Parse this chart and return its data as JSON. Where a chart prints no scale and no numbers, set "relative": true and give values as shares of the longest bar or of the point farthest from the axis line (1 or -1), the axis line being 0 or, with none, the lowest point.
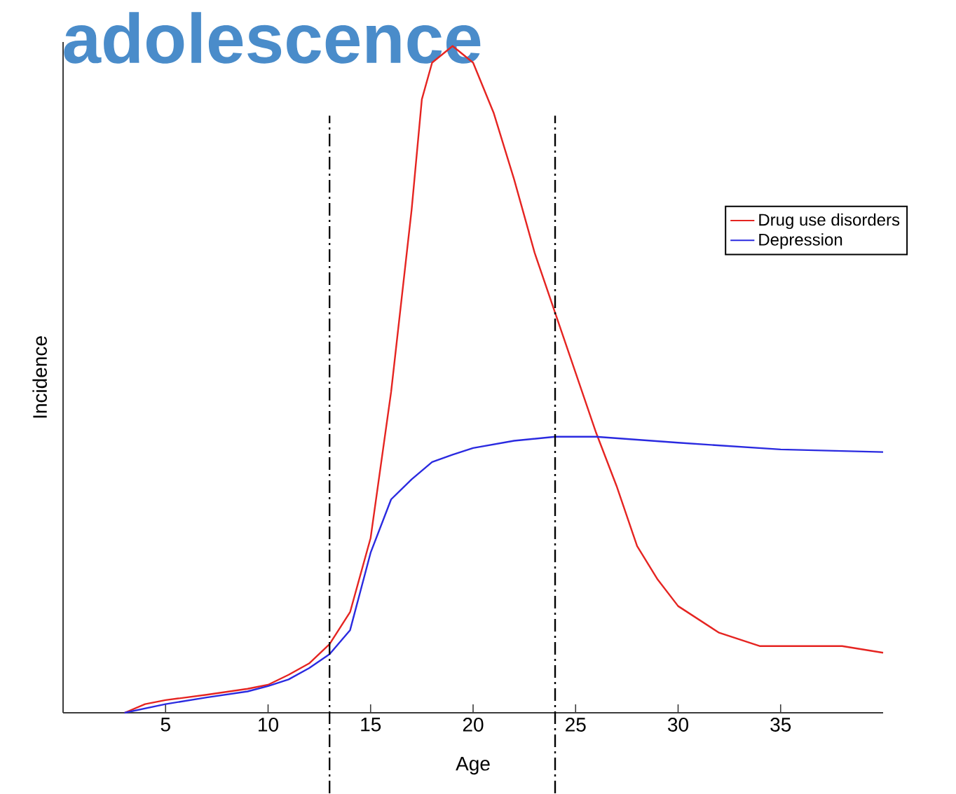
{
  "chart_data": {
    "type": "line",
    "title": "adolescence",
    "xlabel": "Age",
    "ylabel": "Incidence",
    "relative": true,
    "xlim": [
      0,
      40
    ],
    "xticks": [
      5,
      10,
      15,
      20,
      25,
      30,
      35
    ],
    "legend": "top right",
    "line_style": "solid",
    "series": [
      {
        "name": "Drug use disorders",
        "color": "#e52421",
        "x": [
          3,
          4,
          5,
          7,
          9,
          10,
          11,
          12,
          13,
          14,
          15,
          16,
          17,
          17.5,
          18,
          19,
          20,
          21,
          22,
          23,
          24,
          25,
          26,
          27,
          28,
          29,
          30,
          32,
          34,
          36,
          38,
          40
        ],
        "values": [
          0,
          0.013,
          0.019,
          0.027,
          0.036,
          0.042,
          0.057,
          0.074,
          0.103,
          0.151,
          0.262,
          0.481,
          0.754,
          0.92,
          0.975,
          1,
          0.975,
          0.9,
          0.8,
          0.69,
          0.6,
          0.51,
          0.42,
          0.34,
          0.25,
          0.2,
          0.16,
          0.12,
          0.1,
          0.1,
          0.1,
          0.09
        ]
      },
      {
        "name": "Depression",
        "color": "#2a2ae0",
        "x": [
          3,
          5,
          7,
          9,
          10,
          11,
          12,
          13,
          14,
          15,
          16,
          17,
          18,
          19,
          20,
          22,
          24,
          26,
          30,
          35,
          40
        ],
        "values": [
          0,
          0.013,
          0.023,
          0.032,
          0.04,
          0.05,
          0.067,
          0.088,
          0.124,
          0.24,
          0.32,
          0.35,
          0.376,
          0.387,
          0.397,
          0.408,
          0.414,
          0.414,
          0.405,
          0.395,
          0.391
        ]
      }
    ],
    "ref_lines": [
      {
        "axis": "x",
        "value": 13,
        "color": "#000000",
        "line_style": "dashdot"
      },
      {
        "axis": "x",
        "value": 24,
        "color": "#000000",
        "line_style": "dashdot"
      }
    ]
  }
}
